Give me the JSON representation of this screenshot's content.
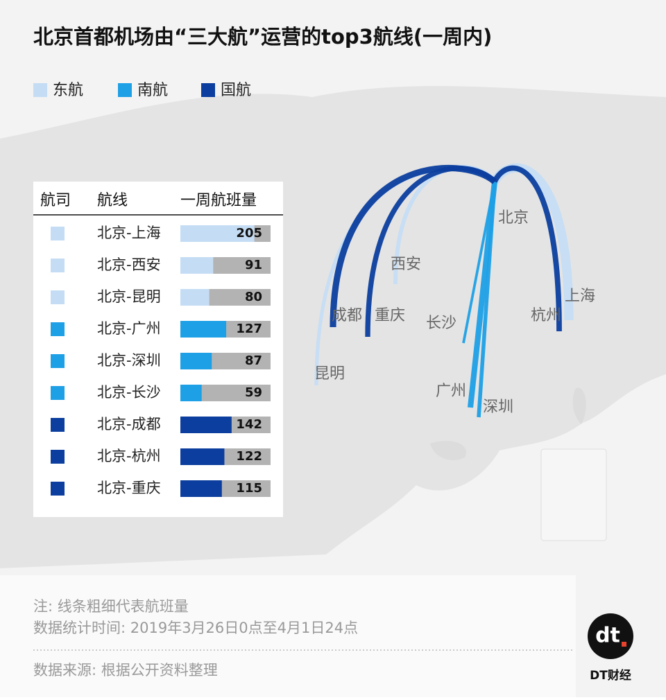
{
  "chart_data": {
    "type": "bar",
    "title": "北京首都机场由“三大航”运营的top3航线(一周内)",
    "column_headers": [
      "航司",
      "航线",
      "一周航班量"
    ],
    "categories": [
      "北京-上海",
      "北京-西安",
      "北京-昆明",
      "北京-广州",
      "北京-深圳",
      "北京-长沙",
      "北京-成都",
      "北京-杭州",
      "北京-重庆"
    ],
    "series": [
      {
        "name": "东航",
        "color": "#c5ddf4",
        "values": [
          205,
          91,
          80,
          null,
          null,
          null,
          null,
          null,
          null
        ]
      },
      {
        "name": "南航",
        "color": "#1ea0e6",
        "values": [
          null,
          null,
          null,
          127,
          87,
          59,
          null,
          null,
          null
        ]
      },
      {
        "name": "国航",
        "color": "#0b3e9e",
        "values": [
          null,
          null,
          null,
          null,
          null,
          null,
          142,
          122,
          115
        ]
      }
    ],
    "xlim": [
      0,
      250
    ],
    "map_labels": [
      "北京",
      "上海",
      "西安",
      "昆明",
      "广州",
      "深圳",
      "长沙",
      "成都",
      "杭州",
      "重庆"
    ],
    "notes": [
      "注: 线条粗细代表航班量",
      "数据统计时间: 2019年3月26日0点至4月1日24点"
    ],
    "source": "数据来源: 根据公开资料整理",
    "brand": "DT财经",
    "logo": "dt"
  }
}
